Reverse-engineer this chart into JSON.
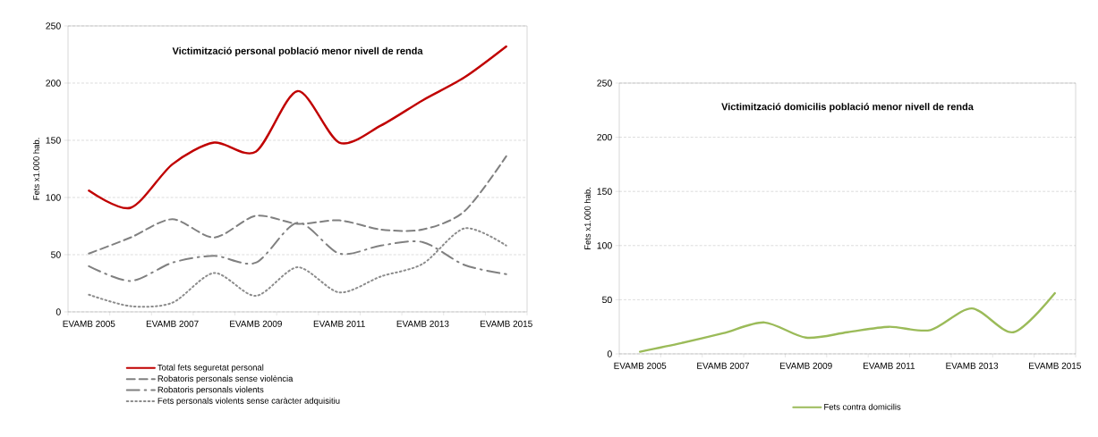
{
  "chart_data": [
    {
      "type": "line",
      "title": "Victimització  personal població menor nivell de renda",
      "ylabel": "Fets x1.000 hab.",
      "categories": [
        "EVAMB 2005",
        null,
        "EVAMB 2007",
        null,
        "EVAMB 2009",
        null,
        "EVAMB 2011",
        null,
        "EVAMB 2013",
        null,
        "EVAMB 2015"
      ],
      "series": [
        {
          "name": "Total fets seguretat personal",
          "color": "#c00000",
          "line_style": "solid",
          "values": [
            106,
            91,
            129,
            148,
            140,
            193,
            148,
            163,
            185,
            205,
            232
          ]
        },
        {
          "name": "Robatoris personals sense violència",
          "color": "#808080",
          "line_style": "dashed",
          "values": [
            51,
            65,
            81,
            65,
            84,
            77,
            80,
            72,
            72,
            88,
            136
          ]
        },
        {
          "name": "Robatoris personals violents",
          "color": "#808080",
          "line_style": "dashdot",
          "values": [
            40,
            27,
            43,
            49,
            43,
            78,
            51,
            58,
            61,
            41,
            33
          ]
        },
        {
          "name": "Fets personals violents sense caràcter adquisitiu",
          "color": "#8c8c8c",
          "line_style": "dotted",
          "values": [
            15,
            5,
            8,
            34,
            14,
            39,
            17,
            31,
            42,
            73,
            58
          ]
        }
      ],
      "ylim": [
        0,
        250
      ],
      "yticks": [
        0,
        50,
        100,
        150,
        200,
        250
      ],
      "grid": "y",
      "legend": "bottom"
    },
    {
      "type": "line",
      "title": "Victimització  domicilis  població menor nivell de renda",
      "ylabel": "Fets x1.000 hab.",
      "categories": [
        "EVAMB 2005",
        null,
        "EVAMB 2007",
        null,
        "EVAMB 2009",
        null,
        "EVAMB 2011",
        null,
        "EVAMB 2013",
        null,
        "EVAMB 2015"
      ],
      "series": [
        {
          "name": "Fets contra domicilis",
          "color": "#9bbb59",
          "line_style": "solid",
          "values": [
            2,
            10,
            19,
            29,
            15,
            20,
            25,
            22,
            42,
            20,
            56
          ]
        }
      ],
      "ylim": [
        0,
        250
      ],
      "yticks": [
        0,
        50,
        100,
        150,
        200,
        250
      ],
      "grid": "y",
      "legend": "bottom"
    }
  ]
}
